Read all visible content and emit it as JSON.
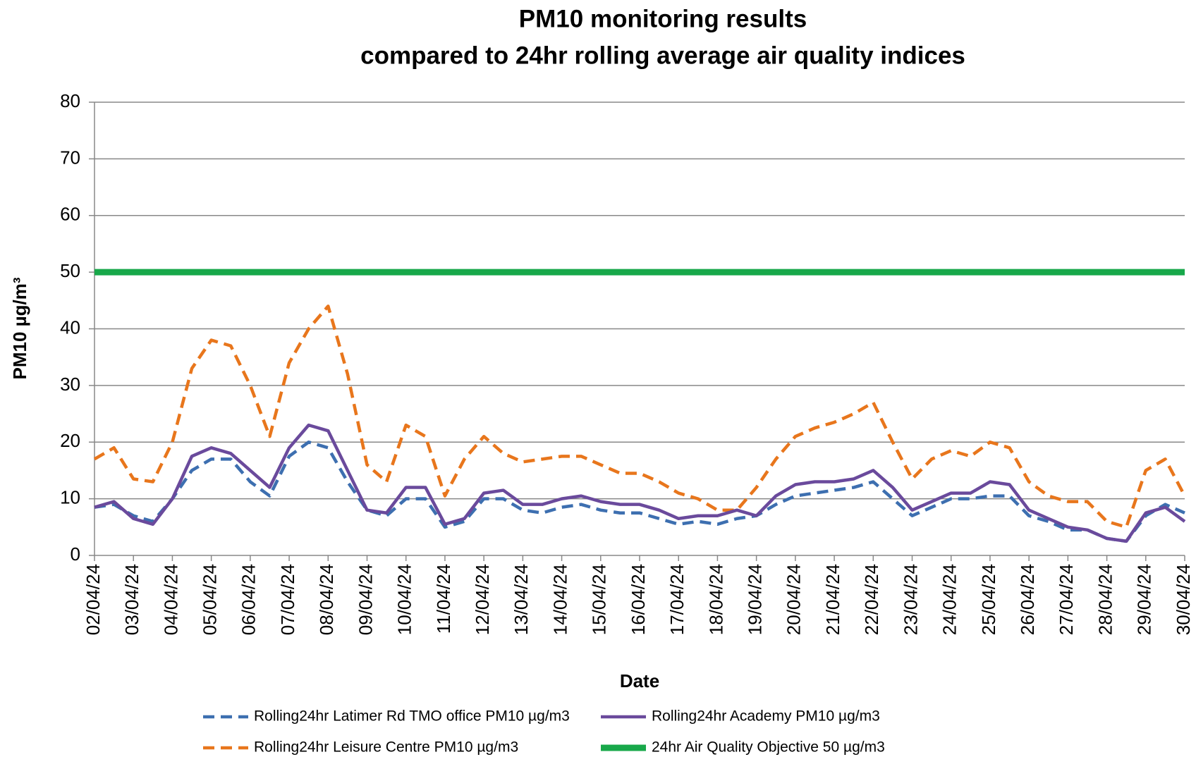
{
  "chart_data": {
    "type": "line",
    "title": [
      "PM10 monitoring results",
      "compared to 24hr rolling average air quality indices"
    ],
    "xlabel": "Date",
    "ylabel": "PM10 µg/m³",
    "x": [
      0,
      0.5,
      1,
      1.5,
      2,
      2.5,
      3,
      3.5,
      4,
      4.5,
      5,
      5.5,
      6,
      6.5,
      7,
      7.5,
      8,
      8.5,
      9,
      9.5,
      10,
      10.5,
      11,
      11.5,
      12,
      12.5,
      13,
      13.5,
      14,
      14.5,
      15,
      15.5,
      16,
      16.5,
      17,
      17.5,
      18,
      18.5,
      19,
      19.5,
      20,
      20.5,
      21,
      21.5,
      22,
      22.5,
      23,
      23.5,
      24,
      24.5,
      25,
      25.5,
      26,
      26.5,
      27,
      27.5,
      28
    ],
    "xlim": [
      0,
      28
    ],
    "xticks": [
      {
        "value": 0,
        "label": "02/04/24"
      },
      {
        "value": 1,
        "label": "03/04/24"
      },
      {
        "value": 2,
        "label": "04/04/24"
      },
      {
        "value": 3,
        "label": "05/04/24"
      },
      {
        "value": 4,
        "label": "06/04/24"
      },
      {
        "value": 5,
        "label": "07/04/24"
      },
      {
        "value": 6,
        "label": "08/04/24"
      },
      {
        "value": 7,
        "label": "09/04/24"
      },
      {
        "value": 8,
        "label": "10/04/24"
      },
      {
        "value": 9,
        "label": "11/04/24"
      },
      {
        "value": 10,
        "label": "12/04/24"
      },
      {
        "value": 11,
        "label": "13/04/24"
      },
      {
        "value": 12,
        "label": "14/04/24"
      },
      {
        "value": 13,
        "label": "15/04/24"
      },
      {
        "value": 14,
        "label": "16/04/24"
      },
      {
        "value": 15,
        "label": "17/04/24"
      },
      {
        "value": 16,
        "label": "18/04/24"
      },
      {
        "value": 17,
        "label": "19/04/24"
      },
      {
        "value": 18,
        "label": "20/04/24"
      },
      {
        "value": 19,
        "label": "21/04/24"
      },
      {
        "value": 20,
        "label": "22/04/24"
      },
      {
        "value": 21,
        "label": "23/04/24"
      },
      {
        "value": 22,
        "label": "24/04/24"
      },
      {
        "value": 23,
        "label": "25/04/24"
      },
      {
        "value": 24,
        "label": "26/04/24"
      },
      {
        "value": 25,
        "label": "27/04/24"
      },
      {
        "value": 26,
        "label": "28/04/24"
      },
      {
        "value": 27,
        "label": "29/04/24"
      },
      {
        "value": 28,
        "label": "30/04/24"
      }
    ],
    "ylim": [
      0,
      80
    ],
    "yticks": [
      0,
      10,
      20,
      30,
      40,
      50,
      60,
      70,
      80
    ],
    "grid": true,
    "series": [
      {
        "name": "Rolling24hr Latimer Rd TMO office PM10 µg/m3",
        "color": "#3d6fb0",
        "dash": "dashed",
        "values": [
          8.5,
          9,
          7,
          6,
          10,
          15,
          17,
          17,
          13,
          10.5,
          17.5,
          20,
          19,
          13,
          8,
          7,
          10,
          10,
          5,
          6,
          10,
          10,
          8,
          7.5,
          8.5,
          9,
          8,
          7.5,
          7.5,
          6.5,
          5.5,
          6,
          5.5,
          6.5,
          7,
          9,
          10.5,
          11,
          11.5,
          12,
          13,
          10,
          7,
          8.5,
          10,
          10,
          10.5,
          10.5,
          7,
          6,
          4.5,
          4.5,
          3,
          2.5,
          7,
          9,
          7.5
        ]
      },
      {
        "name": "Rolling24hr Academy PM10 µg/m3",
        "color": "#6a4a9c",
        "dash": "solid",
        "values": [
          8.5,
          9.5,
          6.5,
          5.5,
          10,
          17.5,
          19,
          18,
          15,
          12,
          19,
          23,
          22,
          15,
          8,
          7.5,
          12,
          12,
          5.5,
          6.5,
          11,
          11.5,
          9,
          9,
          10,
          10.5,
          9.5,
          9,
          9,
          8,
          6.5,
          7,
          7,
          8,
          7,
          10.5,
          12.5,
          13,
          13,
          13.5,
          15,
          12,
          8,
          9.5,
          11,
          11,
          13,
          12.5,
          8,
          6.5,
          5,
          4.5,
          3,
          2.5,
          7.5,
          8.5,
          6
        ]
      },
      {
        "name": "Rolling24hr Leisure Centre PM10 µg/m3",
        "color": "#e8761c",
        "dash": "dashed",
        "values": [
          17,
          19,
          13.5,
          13,
          20,
          33,
          38,
          37,
          30,
          21,
          34,
          40,
          44,
          32,
          16,
          13,
          23,
          21,
          10.5,
          17,
          21,
          18,
          16.5,
          17,
          17.5,
          17.5,
          16,
          14.5,
          14.5,
          13,
          11,
          10,
          8,
          8,
          12,
          17,
          21,
          22.5,
          23.5,
          25,
          27,
          20,
          13.5,
          17,
          18.5,
          17.5,
          20,
          19,
          13,
          10.5,
          9.5,
          9.5,
          6,
          5,
          15,
          17,
          10.5
        ]
      },
      {
        "name": "24hr Air Quality Objective 50 µg/m3",
        "color": "#18a84a",
        "dash": "thick",
        "values": [
          50,
          50,
          50,
          50,
          50,
          50,
          50,
          50,
          50,
          50,
          50,
          50,
          50,
          50,
          50,
          50,
          50,
          50,
          50,
          50,
          50,
          50,
          50,
          50,
          50,
          50,
          50,
          50,
          50,
          50,
          50,
          50,
          50,
          50,
          50,
          50,
          50,
          50,
          50,
          50,
          50,
          50,
          50,
          50,
          50,
          50,
          50,
          50,
          50,
          50,
          50,
          50,
          50,
          50,
          50,
          50,
          50
        ]
      }
    ]
  }
}
